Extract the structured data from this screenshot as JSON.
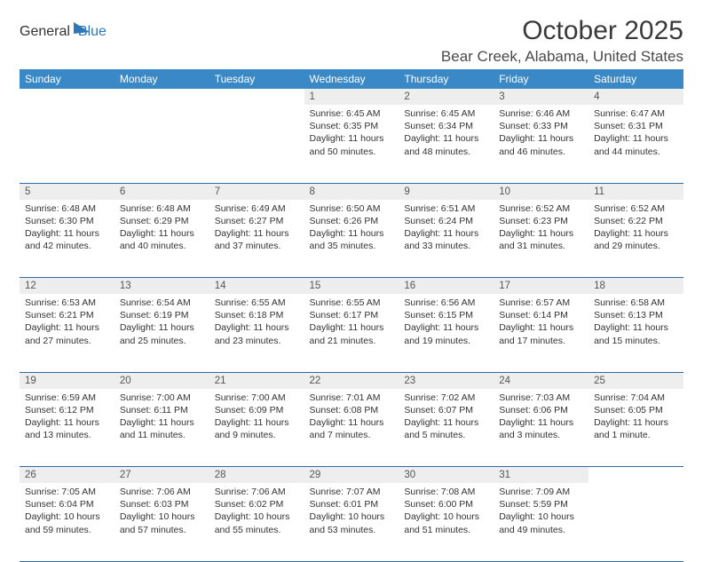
{
  "logo": {
    "part1": "General",
    "part2": "Blue"
  },
  "title": "October 2025",
  "location": "Bear Creek, Alabama, United States",
  "colors": {
    "header_bg": "#3b88c6",
    "header_text": "#ffffff",
    "daynum_bg": "#eeeeee",
    "row_border": "#2f6aa3",
    "logo_accent": "#2f77b9"
  },
  "weekdays": [
    "Sunday",
    "Monday",
    "Tuesday",
    "Wednesday",
    "Thursday",
    "Friday",
    "Saturday"
  ],
  "weeks": [
    {
      "nums": [
        "",
        "",
        "",
        "1",
        "2",
        "3",
        "4"
      ],
      "cells": [
        null,
        null,
        null,
        {
          "sunrise": "6:45 AM",
          "sunset": "6:35 PM",
          "daylight": "11 hours and 50 minutes."
        },
        {
          "sunrise": "6:45 AM",
          "sunset": "6:34 PM",
          "daylight": "11 hours and 48 minutes."
        },
        {
          "sunrise": "6:46 AM",
          "sunset": "6:33 PM",
          "daylight": "11 hours and 46 minutes."
        },
        {
          "sunrise": "6:47 AM",
          "sunset": "6:31 PM",
          "daylight": "11 hours and 44 minutes."
        }
      ]
    },
    {
      "nums": [
        "5",
        "6",
        "7",
        "8",
        "9",
        "10",
        "11"
      ],
      "cells": [
        {
          "sunrise": "6:48 AM",
          "sunset": "6:30 PM",
          "daylight": "11 hours and 42 minutes."
        },
        {
          "sunrise": "6:48 AM",
          "sunset": "6:29 PM",
          "daylight": "11 hours and 40 minutes."
        },
        {
          "sunrise": "6:49 AM",
          "sunset": "6:27 PM",
          "daylight": "11 hours and 37 minutes."
        },
        {
          "sunrise": "6:50 AM",
          "sunset": "6:26 PM",
          "daylight": "11 hours and 35 minutes."
        },
        {
          "sunrise": "6:51 AM",
          "sunset": "6:24 PM",
          "daylight": "11 hours and 33 minutes."
        },
        {
          "sunrise": "6:52 AM",
          "sunset": "6:23 PM",
          "daylight": "11 hours and 31 minutes."
        },
        {
          "sunrise": "6:52 AM",
          "sunset": "6:22 PM",
          "daylight": "11 hours and 29 minutes."
        }
      ]
    },
    {
      "nums": [
        "12",
        "13",
        "14",
        "15",
        "16",
        "17",
        "18"
      ],
      "cells": [
        {
          "sunrise": "6:53 AM",
          "sunset": "6:21 PM",
          "daylight": "11 hours and 27 minutes."
        },
        {
          "sunrise": "6:54 AM",
          "sunset": "6:19 PM",
          "daylight": "11 hours and 25 minutes."
        },
        {
          "sunrise": "6:55 AM",
          "sunset": "6:18 PM",
          "daylight": "11 hours and 23 minutes."
        },
        {
          "sunrise": "6:55 AM",
          "sunset": "6:17 PM",
          "daylight": "11 hours and 21 minutes."
        },
        {
          "sunrise": "6:56 AM",
          "sunset": "6:15 PM",
          "daylight": "11 hours and 19 minutes."
        },
        {
          "sunrise": "6:57 AM",
          "sunset": "6:14 PM",
          "daylight": "11 hours and 17 minutes."
        },
        {
          "sunrise": "6:58 AM",
          "sunset": "6:13 PM",
          "daylight": "11 hours and 15 minutes."
        }
      ]
    },
    {
      "nums": [
        "19",
        "20",
        "21",
        "22",
        "23",
        "24",
        "25"
      ],
      "cells": [
        {
          "sunrise": "6:59 AM",
          "sunset": "6:12 PM",
          "daylight": "11 hours and 13 minutes."
        },
        {
          "sunrise": "7:00 AM",
          "sunset": "6:11 PM",
          "daylight": "11 hours and 11 minutes."
        },
        {
          "sunrise": "7:00 AM",
          "sunset": "6:09 PM",
          "daylight": "11 hours and 9 minutes."
        },
        {
          "sunrise": "7:01 AM",
          "sunset": "6:08 PM",
          "daylight": "11 hours and 7 minutes."
        },
        {
          "sunrise": "7:02 AM",
          "sunset": "6:07 PM",
          "daylight": "11 hours and 5 minutes."
        },
        {
          "sunrise": "7:03 AM",
          "sunset": "6:06 PM",
          "daylight": "11 hours and 3 minutes."
        },
        {
          "sunrise": "7:04 AM",
          "sunset": "6:05 PM",
          "daylight": "11 hours and 1 minute."
        }
      ]
    },
    {
      "nums": [
        "26",
        "27",
        "28",
        "29",
        "30",
        "31",
        ""
      ],
      "cells": [
        {
          "sunrise": "7:05 AM",
          "sunset": "6:04 PM",
          "daylight": "10 hours and 59 minutes."
        },
        {
          "sunrise": "7:06 AM",
          "sunset": "6:03 PM",
          "daylight": "10 hours and 57 minutes."
        },
        {
          "sunrise": "7:06 AM",
          "sunset": "6:02 PM",
          "daylight": "10 hours and 55 minutes."
        },
        {
          "sunrise": "7:07 AM",
          "sunset": "6:01 PM",
          "daylight": "10 hours and 53 minutes."
        },
        {
          "sunrise": "7:08 AM",
          "sunset": "6:00 PM",
          "daylight": "10 hours and 51 minutes."
        },
        {
          "sunrise": "7:09 AM",
          "sunset": "5:59 PM",
          "daylight": "10 hours and 49 minutes."
        },
        null
      ]
    }
  ],
  "labels": {
    "sunrise": "Sunrise:",
    "sunset": "Sunset:",
    "daylight": "Daylight:"
  }
}
